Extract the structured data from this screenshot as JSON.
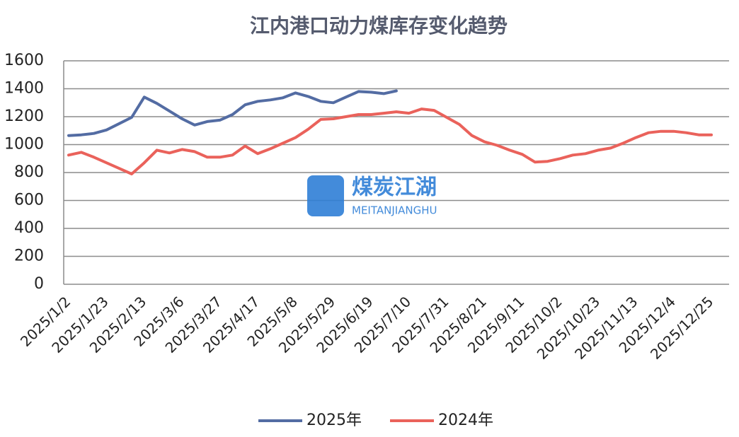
{
  "chart_data": {
    "type": "line",
    "title": "江内港口动力煤库存变化趋势",
    "categories": [
      "2025/1/2",
      null,
      null,
      "2025/1/23",
      null,
      null,
      "2025/2/13",
      null,
      null,
      "2025/3/6",
      null,
      null,
      "2025/3/27",
      null,
      null,
      "2025/4/17",
      null,
      null,
      "2025/5/8",
      null,
      null,
      "2025/5/29",
      null,
      null,
      "2025/6/19",
      null,
      null,
      "2025/7/10",
      null,
      null,
      "2025/7/31",
      null,
      null,
      "2025/8/21",
      null,
      null,
      "2025/9/11",
      null,
      null,
      "2025/10/2",
      null,
      null,
      "2025/10/23",
      null,
      null,
      "2025/11/13",
      null,
      null,
      "2025/12/4",
      null,
      null,
      "2025/12/25"
    ],
    "series": [
      {
        "name": "2025年",
        "color": "#536ca3",
        "values": [
          1065,
          1070,
          1080,
          1105,
          1150,
          1195,
          1340,
          1295,
          1240,
          1185,
          1140,
          1165,
          1175,
          1215,
          1285,
          1310,
          1320,
          1335,
          1370,
          1345,
          1310,
          1300,
          1340,
          1380,
          1375,
          1365,
          1385,
          null,
          null,
          null,
          null,
          null,
          null,
          null,
          null,
          null,
          null,
          null,
          null,
          null,
          null,
          null,
          null,
          null,
          null,
          null,
          null,
          null,
          null,
          null,
          null,
          null
        ]
      },
      {
        "name": "2024年",
        "color": "#ea625b",
        "values": [
          925,
          945,
          910,
          870,
          830,
          790,
          870,
          960,
          940,
          965,
          950,
          910,
          910,
          925,
          990,
          935,
          970,
          1010,
          1050,
          1110,
          1180,
          1185,
          1200,
          1215,
          1215,
          1225,
          1235,
          1225,
          1255,
          1245,
          1195,
          1145,
          1065,
          1020,
          995,
          960,
          930,
          875,
          880,
          900,
          925,
          935,
          960,
          975,
          1010,
          1050,
          1085,
          1095,
          1095,
          1085,
          1070,
          1070
        ]
      }
    ],
    "ylim": [
      0,
      1600
    ],
    "yticks": [
      0,
      200,
      400,
      600,
      800,
      1000,
      1200,
      1400,
      1600
    ],
    "grid": true,
    "legend": "bottom",
    "watermark": {
      "brand": "煤炭江湖",
      "brand_en": "MEITANJIANGHU"
    }
  }
}
